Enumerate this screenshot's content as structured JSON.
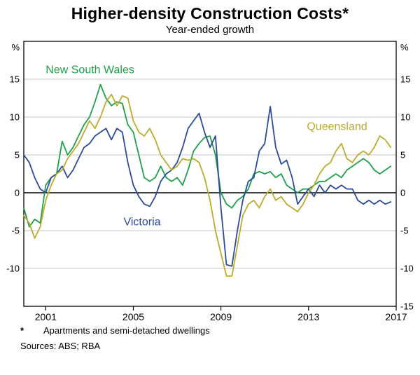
{
  "title": "Higher-density Construction Costs*",
  "subtitle": "Year-ended growth",
  "footnote": {
    "marker": "*",
    "text": "Apartments and semi-detached dwellings",
    "sources": "Sources: ABS; RBA"
  },
  "chart_data": {
    "type": "line",
    "title": "Higher-density Construction Costs*",
    "subtitle": "Year-ended growth",
    "y_unit": "%",
    "xlim": [
      2000,
      2017
    ],
    "ylim": [
      -15,
      20
    ],
    "yticks": [
      -15,
      -10,
      -5,
      0,
      5,
      10,
      15
    ],
    "left_ticks": [
      15,
      10,
      5,
      0,
      -5,
      -10
    ],
    "right_ticks": [
      15,
      10,
      5,
      0,
      -5,
      -10,
      -15
    ],
    "xticks": [
      2001,
      2005,
      2009,
      2013,
      2017
    ],
    "grid": true,
    "colors": {
      "new_south_wales": "#1fa04b",
      "victoria": "#2a4a9c",
      "queensland": "#bcab2d",
      "axis": "#000000",
      "gridline": "#b3b3b3"
    },
    "x": [
      2000,
      2000.25,
      2000.5,
      2000.75,
      2001,
      2001.25,
      2001.5,
      2001.75,
      2002,
      2002.25,
      2002.5,
      2002.75,
      2003,
      2003.25,
      2003.5,
      2003.75,
      2004,
      2004.25,
      2004.5,
      2004.75,
      2005,
      2005.25,
      2005.5,
      2005.75,
      2006,
      2006.25,
      2006.5,
      2006.75,
      2007,
      2007.25,
      2007.5,
      2007.75,
      2008,
      2008.25,
      2008.5,
      2008.75,
      2009,
      2009.25,
      2009.5,
      2009.75,
      2010,
      2010.25,
      2010.5,
      2010.75,
      2011,
      2011.25,
      2011.5,
      2011.75,
      2012,
      2012.25,
      2012.5,
      2012.75,
      2013,
      2013.25,
      2013.5,
      2013.75,
      2014,
      2014.25,
      2014.5,
      2014.75,
      2015,
      2015.25,
      2015.5,
      2015.75,
      2016,
      2016.25,
      2016.5,
      2016.75
    ],
    "series": [
      {
        "name": "New South Wales",
        "color": "#1fa04b",
        "values": [
          -2.0,
          -4.5,
          -3.5,
          -4.0,
          1.0,
          2.0,
          2.5,
          6.8,
          5.0,
          6.0,
          7.5,
          9.0,
          10.0,
          12.0,
          14.3,
          12.5,
          11.5,
          12.0,
          11.8,
          9.0,
          8.0,
          5.0,
          2.0,
          1.5,
          2.0,
          3.5,
          2.0,
          1.5,
          2.0,
          1.0,
          3.0,
          5.5,
          6.5,
          7.3,
          7.5,
          5.0,
          0.0,
          -1.5,
          -2.0,
          -1.0,
          -0.5,
          0.5,
          2.5,
          2.8,
          2.5,
          2.8,
          2.0,
          2.5,
          1.0,
          0.5,
          0.0,
          0.5,
          0.5,
          1.0,
          1.5,
          1.5,
          2.0,
          2.5,
          2.0,
          3.0,
          3.5,
          4.0,
          4.5,
          4.0,
          3.0,
          2.5,
          3.0,
          3.5
        ]
      },
      {
        "name": "Victoria",
        "color": "#2a4a9c",
        "values": [
          5.0,
          4.0,
          2.0,
          0.5,
          0.0,
          2.0,
          2.5,
          3.5,
          2.0,
          3.0,
          4.5,
          6.0,
          6.5,
          7.5,
          8.0,
          8.5,
          7.0,
          8.5,
          8.0,
          4.0,
          1.0,
          -0.5,
          -1.5,
          -1.8,
          -0.5,
          1.5,
          2.5,
          3.0,
          4.0,
          6.0,
          8.5,
          9.5,
          10.5,
          8.0,
          6.0,
          7.5,
          -2.0,
          -9.5,
          -9.7,
          -5.0,
          -1.0,
          1.5,
          2.0,
          5.5,
          6.5,
          11.4,
          6.0,
          3.8,
          4.3,
          2.0,
          -1.5,
          -0.5,
          0.5,
          -0.5,
          1.0,
          0.0,
          1.0,
          0.5,
          1.0,
          0.5,
          0.5,
          -1.0,
          -1.5,
          -1.0,
          -1.5,
          -1.0,
          -1.5,
          -1.2
        ]
      },
      {
        "name": "Queensland",
        "color": "#bcab2d",
        "values": [
          -3.0,
          -4.0,
          -6.0,
          -4.5,
          -1.0,
          1.0,
          2.5,
          3.0,
          4.5,
          5.5,
          6.5,
          8.0,
          9.5,
          8.5,
          10.0,
          12.0,
          13.0,
          11.5,
          12.8,
          12.5,
          9.5,
          8.0,
          7.5,
          8.5,
          7.0,
          5.0,
          4.0,
          3.0,
          3.5,
          4.5,
          4.3,
          4.5,
          4.0,
          2.0,
          -1.0,
          -5.0,
          -8.0,
          -11.0,
          -11.0,
          -7.0,
          -3.0,
          -1.5,
          -1.0,
          -2.0,
          -0.5,
          0.5,
          -1.0,
          -0.5,
          -1.5,
          -2.0,
          -2.5,
          -1.5,
          0.0,
          1.0,
          2.5,
          3.5,
          4.0,
          5.5,
          6.5,
          4.5,
          4.0,
          5.0,
          5.5,
          5.0,
          6.0,
          7.5,
          7.0,
          6.0
        ]
      }
    ],
    "annotations": [
      {
        "text": "New South Wales",
        "color": "#1fa04b",
        "x": 2001.0,
        "y": 15.8,
        "anchor": "start"
      },
      {
        "text": "Victoria",
        "color": "#2a4a9c",
        "x": 2005.4,
        "y": -4.3,
        "anchor": "middle"
      },
      {
        "text": "Queensland",
        "color": "#bcab2d",
        "x": 2014.3,
        "y": 8.3,
        "anchor": "middle"
      }
    ]
  }
}
